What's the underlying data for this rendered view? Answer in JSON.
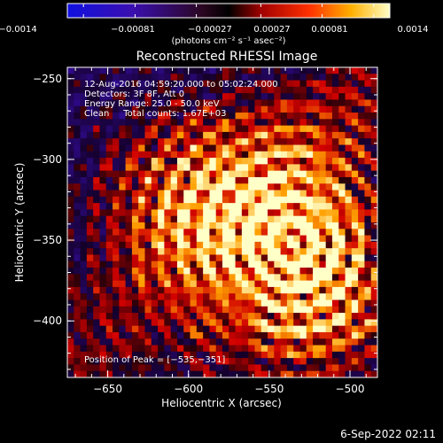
{
  "colorbar": {
    "tick_labels": [
      "−0.0014",
      "−0.00081",
      "−0.00027",
      "0.00027",
      "0.00081",
      "0.0014"
    ],
    "unit_label": "(photons cm⁻² s⁻¹ asec⁻²)",
    "range": [
      -0.0014,
      0.0014
    ]
  },
  "footer_timestamp": "6-Sep-2022 02:11",
  "annotations": {
    "time_range": "12-Aug-2016 04:59:20.000 to 05:02:24.000",
    "detectors": "Detectors: 3F 8F, Att 0",
    "energy": "Energy Range: 25.0 - 50.0 keV",
    "algorithm": "Clean     Total counts: 1.67E+03",
    "peak": "Position of Peak = [−535,−351]"
  },
  "chart_data": {
    "type": "heatmap",
    "title": "Reconstructed RHESSI Image",
    "xlabel": "Heliocentric X (arcsec)",
    "ylabel": "Heliocentric Y (arcsec)",
    "xlim": [
      -675,
      -483
    ],
    "ylim": [
      -435,
      -243
    ],
    "x_ticks": [
      -650,
      -600,
      -550,
      -500
    ],
    "x_tick_labels": [
      "−650",
      "−600",
      "−550",
      "−500"
    ],
    "y_ticks": [
      -250,
      -300,
      -350,
      -400
    ],
    "y_tick_labels": [
      "−250",
      "−300",
      "−350",
      "−400"
    ],
    "peak": [
      -535,
      -351
    ],
    "colors": {
      "negative": "#1a10d8",
      "zero": "#000000",
      "positive_low": "#c01010",
      "positive_mid": "#ff7a00",
      "positive_high": "#ffff80"
    }
  }
}
